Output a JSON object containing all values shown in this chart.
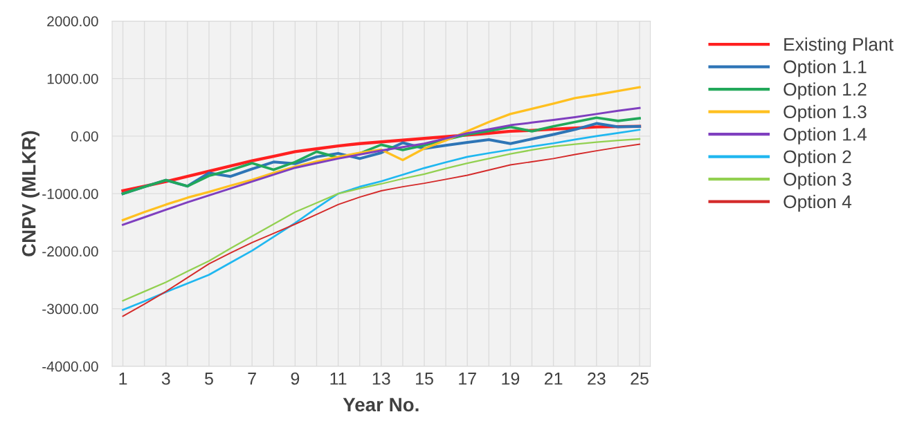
{
  "chart_data": {
    "type": "line",
    "xlabel": "Year No.",
    "ylabel": "CNPV (MLKR)",
    "categories": [
      "1",
      null,
      "3",
      null,
      "5",
      null,
      "7",
      null,
      "9",
      null,
      "11",
      null,
      "13",
      null,
      "15",
      null,
      "17",
      null,
      "19",
      null,
      "21",
      null,
      "23",
      null,
      "25"
    ],
    "ylim": [
      -4000,
      2000
    ],
    "yticks": [
      {
        "value": -4000,
        "label": "-4000.00"
      },
      {
        "value": -3000,
        "label": "-3000.00"
      },
      {
        "value": -2000,
        "label": "-2000.00"
      },
      {
        "value": -1000,
        "label": "-1000.00"
      },
      {
        "value": 0,
        "label": "0.00"
      },
      {
        "value": 1000,
        "label": "1000.00"
      },
      {
        "value": 2000,
        "label": "2000.00"
      }
    ],
    "grid": true,
    "legend": "right",
    "marker": "none",
    "line_style": "solid",
    "series": [
      {
        "name": "Existing Plant",
        "color": "#ff2020",
        "values": [
          -950,
          -870,
          -790,
          -700,
          -610,
          -520,
          -430,
          -350,
          -270,
          -220,
          -170,
          -130,
          -100,
          -70,
          -40,
          -10,
          20,
          50,
          85,
          100,
          120,
          140,
          160,
          165,
          170
        ]
      },
      {
        "name": "Option 1.1",
        "color": "#2e75b6",
        "values": [
          -1000,
          -880,
          -765,
          -870,
          -640,
          -700,
          -570,
          -450,
          -480,
          -360,
          -300,
          -390,
          -290,
          -115,
          -215,
          -160,
          -110,
          -60,
          -130,
          -50,
          30,
          115,
          220,
          160,
          170
        ]
      },
      {
        "name": "Option 1.2",
        "color": "#22a85a",
        "values": [
          -1000,
          -880,
          -765,
          -870,
          -690,
          -590,
          -470,
          -585,
          -450,
          -270,
          -375,
          -300,
          -150,
          -240,
          -160,
          -60,
          30,
          90,
          160,
          85,
          170,
          245,
          320,
          265,
          310
        ]
      },
      {
        "name": "Option 1.3",
        "color": "#ffc020",
        "values": [
          -1460,
          -1320,
          -1190,
          -1070,
          -970,
          -860,
          -760,
          -640,
          -530,
          -440,
          -360,
          -290,
          -235,
          -415,
          -215,
          -75,
          85,
          245,
          385,
          475,
          565,
          660,
          720,
          785,
          850
        ]
      },
      {
        "name": "Option 1.4",
        "color": "#7f3fbf",
        "values": [
          -1540,
          -1410,
          -1280,
          -1150,
          -1030,
          -910,
          -790,
          -670,
          -550,
          -470,
          -390,
          -320,
          -250,
          -190,
          -130,
          -40,
          50,
          120,
          190,
          235,
          280,
          330,
          385,
          440,
          490
        ]
      },
      {
        "name": "Option 2",
        "color": "#1fb7f0",
        "values": [
          -3020,
          -2870,
          -2710,
          -2560,
          -2410,
          -2200,
          -1990,
          -1750,
          -1510,
          -1250,
          -1000,
          -880,
          -785,
          -670,
          -555,
          -455,
          -360,
          -295,
          -235,
          -180,
          -125,
          -60,
          0,
          55,
          110
        ]
      },
      {
        "name": "Option 3",
        "color": "#92d050",
        "values": [
          -2860,
          -2700,
          -2540,
          -2350,
          -2170,
          -1950,
          -1740,
          -1530,
          -1320,
          -1160,
          -1000,
          -910,
          -830,
          -740,
          -660,
          -560,
          -470,
          -390,
          -310,
          -240,
          -180,
          -140,
          -105,
          -75,
          -50
        ]
      },
      {
        "name": "Option 4",
        "color": "#d42a2a",
        "values": [
          -3130,
          -2920,
          -2700,
          -2460,
          -2220,
          -2030,
          -1850,
          -1690,
          -1530,
          -1360,
          -1190,
          -1060,
          -950,
          -880,
          -820,
          -750,
          -680,
          -590,
          -500,
          -445,
          -390,
          -320,
          -255,
          -195,
          -140
        ]
      }
    ]
  }
}
